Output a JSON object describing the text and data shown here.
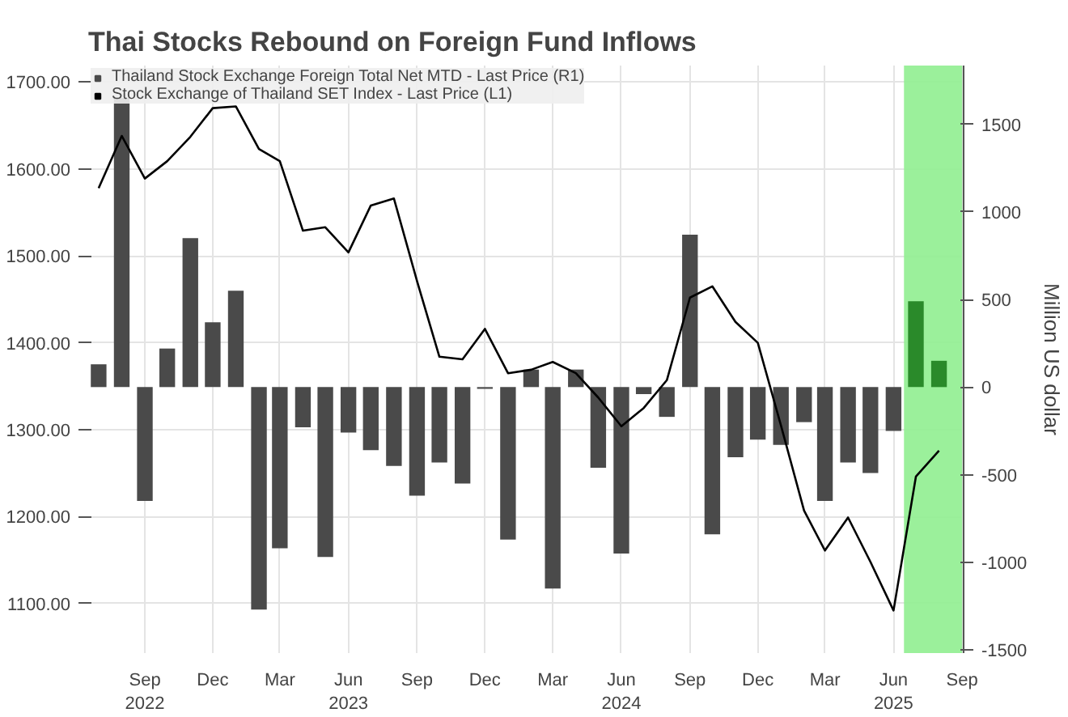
{
  "chart_data": {
    "type": "bar",
    "title": "Thai Stocks Rebound on Foreign Fund Inflows",
    "y2label": "Million US dollar",
    "x": [
      "2022-07",
      "2022-08",
      "2022-09",
      "2022-10",
      "2022-11",
      "2022-12",
      "2023-01",
      "2023-02",
      "2023-03",
      "2023-04",
      "2023-05",
      "2023-06",
      "2023-07",
      "2023-08",
      "2023-09",
      "2023-10",
      "2023-11",
      "2023-12",
      "2024-01",
      "2024-02",
      "2024-03",
      "2024-04",
      "2024-05",
      "2024-06",
      "2024-07",
      "2024-08",
      "2024-09",
      "2024-10",
      "2024-11",
      "2024-12",
      "2025-01",
      "2025-02",
      "2025-03",
      "2025-04",
      "2025-05",
      "2025-06",
      "2025-07",
      "2025-08"
    ],
    "series": [
      {
        "name": "Thailand Stock Exchange Foreign Total Net MTD - Last Price (R1)",
        "axis": "y2",
        "color": "#4a4a4a",
        "colors": [
          "#4a4a4a",
          "#4a4a4a",
          "#4a4a4a",
          "#4a4a4a",
          "#4a4a4a",
          "#4a4a4a",
          "#4a4a4a",
          "#4a4a4a",
          "#4a4a4a",
          "#4a4a4a",
          "#4a4a4a",
          "#4a4a4a",
          "#4a4a4a",
          "#4a4a4a",
          "#4a4a4a",
          "#4a4a4a",
          "#4a4a4a",
          "#4a4a4a",
          "#4a4a4a",
          "#4a4a4a",
          "#4a4a4a",
          "#4a4a4a",
          "#4a4a4a",
          "#4a4a4a",
          "#4a4a4a",
          "#4a4a4a",
          "#4a4a4a",
          "#4a4a4a",
          "#4a4a4a",
          "#4a4a4a",
          "#4a4a4a",
          "#4a4a4a",
          "#4a4a4a",
          "#4a4a4a",
          "#4a4a4a",
          "#4a4a4a",
          "#2a8a2a",
          "#2a8a2a"
        ],
        "values": [
          130,
          1650,
          -650,
          220,
          850,
          370,
          550,
          -1270,
          -920,
          -230,
          -970,
          -260,
          -360,
          -450,
          -620,
          -430,
          -550,
          -10,
          -870,
          100,
          -1150,
          100,
          -460,
          -950,
          -40,
          -170,
          870,
          -840,
          -400,
          -300,
          -330,
          -200,
          -650,
          -430,
          -490,
          -250,
          490,
          150
        ]
      },
      {
        "name": "Stock Exchange of Thailand SET Index - Last Price (L1)",
        "type": "line",
        "axis": "y",
        "color": "#000000",
        "values": [
          1578,
          1638,
          1589,
          1609,
          1637,
          1670,
          1672,
          1623,
          1609,
          1529,
          1533,
          1504,
          1558,
          1566,
          1471,
          1384,
          1381,
          1416,
          1365,
          1369,
          1378,
          1365,
          1337,
          1304,
          1325,
          1357,
          1452,
          1465,
          1424,
          1400,
          1305,
          1207,
          1161,
          1199,
          1148,
          1092,
          1246,
          1276
        ]
      }
    ],
    "xlim": [
      "2022-06-17",
      "2025-09-03"
    ],
    "xticks": [
      {
        "value": "2022-09",
        "label": "Sep\n2022"
      },
      {
        "value": "2022-12",
        "label": "Dec"
      },
      {
        "value": "2023-03",
        "label": "Mar"
      },
      {
        "value": "2023-06",
        "label": "Jun\n2023"
      },
      {
        "value": "2023-09",
        "label": "Sep"
      },
      {
        "value": "2023-12",
        "label": "Dec"
      },
      {
        "value": "2024-03",
        "label": "Mar"
      },
      {
        "value": "2024-06",
        "label": "Jun\n2024"
      },
      {
        "value": "2024-09",
        "label": "Sep"
      },
      {
        "value": "2024-12",
        "label": "Dec"
      },
      {
        "value": "2025-03",
        "label": "Mar"
      },
      {
        "value": "2025-06",
        "label": "Jun\n2025"
      },
      {
        "value": "2025-09",
        "label": "Sep"
      }
    ],
    "ylim": [
      1043,
      1719
    ],
    "yticks": [
      {
        "value": 1100,
        "label": "1100.00"
      },
      {
        "value": 1200,
        "label": "1200.00"
      },
      {
        "value": 1300,
        "label": "1300.00"
      },
      {
        "value": 1400,
        "label": "1400.00"
      },
      {
        "value": 1500,
        "label": "1500.00"
      },
      {
        "value": 1600,
        "label": "1600.00"
      },
      {
        "value": 1700,
        "label": "1700.00"
      }
    ],
    "y2lim": [
      -1518,
      1835
    ],
    "y2ticks": [
      -1500,
      -1000,
      -500,
      0,
      500,
      1000,
      1500
    ],
    "bands": [
      {
        "axis": "x",
        "from": "2025-06-15",
        "to": "2025-09-01",
        "color": "#90ee90"
      }
    ],
    "grid": true,
    "legend": "top left"
  }
}
